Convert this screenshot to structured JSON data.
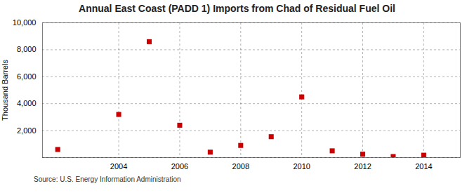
{
  "chart_data": {
    "type": "scatter",
    "title": "Annual East Coast (PADD 1) Imports from Chad of Residual Fuel Oil",
    "ylabel": "Thousand Barrels",
    "source": "Source: U.S. Energy Information Administration",
    "x": [
      2002,
      2004,
      2005,
      2006,
      2007,
      2008,
      2009,
      2010,
      2011,
      2012,
      2013,
      2014
    ],
    "values": [
      600,
      3200,
      8600,
      2400,
      400,
      900,
      1550,
      4500,
      500,
      250,
      75,
      175
    ],
    "color": "#cc0000",
    "marker": "square",
    "xlim": [
      2001.5,
      2015.2
    ],
    "ylim": [
      0,
      10000
    ],
    "xticks": [
      2004,
      2006,
      2008,
      2010,
      2012,
      2014
    ],
    "yticks": [
      {
        "value": 0,
        "label": ""
      },
      {
        "value": 2000,
        "label": "2,000"
      },
      {
        "value": 4000,
        "label": "4,000"
      },
      {
        "value": 6000,
        "label": "6,000"
      },
      {
        "value": 8000,
        "label": "8,000"
      },
      {
        "value": 10000,
        "label": "10,000"
      }
    ],
    "grid": true
  }
}
